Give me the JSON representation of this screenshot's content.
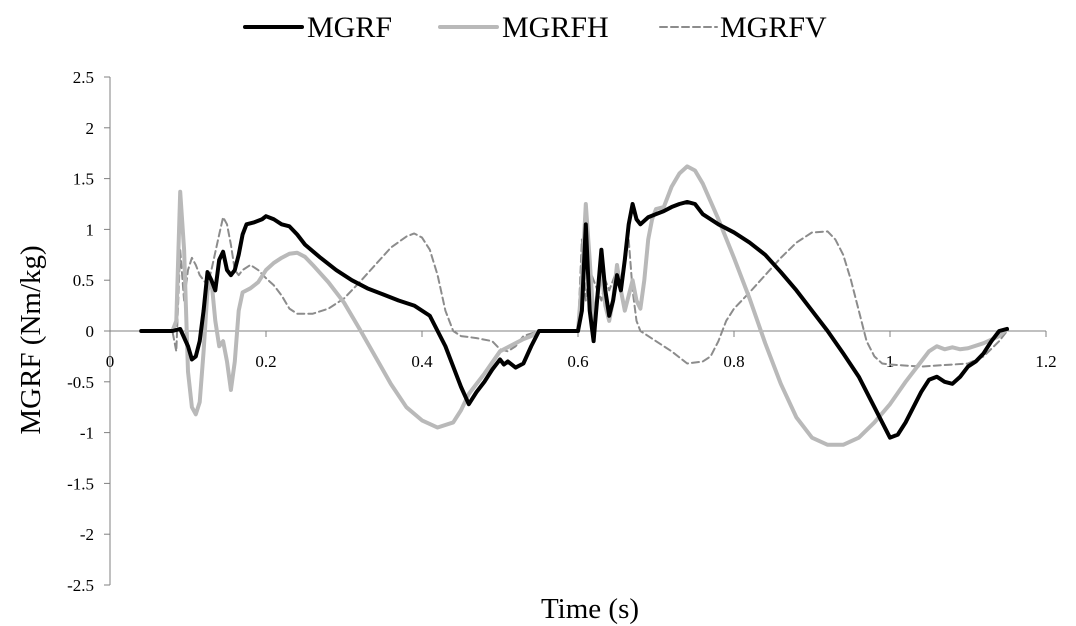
{
  "chart_data": {
    "type": "line",
    "title": "",
    "xlabel": "Time (s)",
    "ylabel": "MGRF (Nm/kg)",
    "xlim": [
      0,
      1.2
    ],
    "ylim": [
      -2.5,
      2.5
    ],
    "xticks": [
      0,
      0.2,
      0.4,
      0.6,
      0.8,
      1,
      1.2
    ],
    "xtick_labels": [
      "0",
      "0.2",
      "0.4",
      "0.6",
      "0.8",
      "1",
      "1.2"
    ],
    "yticks": [
      2.5,
      2,
      1.5,
      1,
      0.5,
      0,
      -0.5,
      -1,
      -1.5,
      -2,
      -2.5
    ],
    "ytick_labels": [
      "2.5",
      "2",
      "1.5",
      "1",
      "0.5",
      "0",
      "-0.5",
      "-1",
      "-1.5",
      "-2",
      "-2.5"
    ],
    "grid": false,
    "legend_position": "top",
    "series": [
      {
        "name": "MGRF",
        "color": "#000000",
        "style": "solid",
        "points": [
          [
            0.04,
            0
          ],
          [
            0.08,
            0
          ],
          [
            0.09,
            0.02
          ],
          [
            0.1,
            -0.15
          ],
          [
            0.105,
            -0.28
          ],
          [
            0.11,
            -0.25
          ],
          [
            0.115,
            -0.1
          ],
          [
            0.12,
            0.2
          ],
          [
            0.125,
            0.58
          ],
          [
            0.13,
            0.5
          ],
          [
            0.135,
            0.4
          ],
          [
            0.14,
            0.7
          ],
          [
            0.145,
            0.78
          ],
          [
            0.15,
            0.6
          ],
          [
            0.155,
            0.55
          ],
          [
            0.16,
            0.6
          ],
          [
            0.165,
            0.75
          ],
          [
            0.17,
            0.95
          ],
          [
            0.175,
            1.05
          ],
          [
            0.185,
            1.07
          ],
          [
            0.195,
            1.1
          ],
          [
            0.2,
            1.13
          ],
          [
            0.21,
            1.1
          ],
          [
            0.22,
            1.05
          ],
          [
            0.23,
            1.03
          ],
          [
            0.24,
            0.95
          ],
          [
            0.25,
            0.85
          ],
          [
            0.27,
            0.72
          ],
          [
            0.29,
            0.6
          ],
          [
            0.31,
            0.5
          ],
          [
            0.33,
            0.42
          ],
          [
            0.35,
            0.36
          ],
          [
            0.37,
            0.3
          ],
          [
            0.39,
            0.25
          ],
          [
            0.41,
            0.15
          ],
          [
            0.42,
            0
          ],
          [
            0.43,
            -0.15
          ],
          [
            0.44,
            -0.35
          ],
          [
            0.45,
            -0.55
          ],
          [
            0.46,
            -0.72
          ],
          [
            0.47,
            -0.6
          ],
          [
            0.48,
            -0.5
          ],
          [
            0.49,
            -0.38
          ],
          [
            0.5,
            -0.28
          ],
          [
            0.505,
            -0.33
          ],
          [
            0.51,
            -0.3
          ],
          [
            0.52,
            -0.36
          ],
          [
            0.53,
            -0.32
          ],
          [
            0.54,
            -0.15
          ],
          [
            0.55,
            0
          ],
          [
            0.6,
            0
          ],
          [
            0.605,
            0.2
          ],
          [
            0.61,
            1.05
          ],
          [
            0.615,
            0.2
          ],
          [
            0.62,
            -0.1
          ],
          [
            0.625,
            0.35
          ],
          [
            0.63,
            0.8
          ],
          [
            0.635,
            0.4
          ],
          [
            0.64,
            0.15
          ],
          [
            0.645,
            0.3
          ],
          [
            0.65,
            0.55
          ],
          [
            0.655,
            0.4
          ],
          [
            0.66,
            0.7
          ],
          [
            0.665,
            1.05
          ],
          [
            0.67,
            1.25
          ],
          [
            0.675,
            1.1
          ],
          [
            0.68,
            1.05
          ],
          [
            0.69,
            1.12
          ],
          [
            0.7,
            1.15
          ],
          [
            0.71,
            1.18
          ],
          [
            0.72,
            1.22
          ],
          [
            0.73,
            1.25
          ],
          [
            0.74,
            1.27
          ],
          [
            0.75,
            1.25
          ],
          [
            0.76,
            1.15
          ],
          [
            0.78,
            1.05
          ],
          [
            0.8,
            0.97
          ],
          [
            0.82,
            0.87
          ],
          [
            0.84,
            0.75
          ],
          [
            0.86,
            0.58
          ],
          [
            0.88,
            0.4
          ],
          [
            0.9,
            0.2
          ],
          [
            0.92,
            0
          ],
          [
            0.94,
            -0.22
          ],
          [
            0.96,
            -0.45
          ],
          [
            0.98,
            -0.75
          ],
          [
            1.0,
            -1.05
          ],
          [
            1.01,
            -1.02
          ],
          [
            1.02,
            -0.9
          ],
          [
            1.03,
            -0.75
          ],
          [
            1.04,
            -0.6
          ],
          [
            1.05,
            -0.48
          ],
          [
            1.06,
            -0.45
          ],
          [
            1.07,
            -0.5
          ],
          [
            1.08,
            -0.52
          ],
          [
            1.09,
            -0.45
          ],
          [
            1.1,
            -0.35
          ],
          [
            1.11,
            -0.3
          ],
          [
            1.12,
            -0.22
          ],
          [
            1.13,
            -0.1
          ],
          [
            1.14,
            0
          ],
          [
            1.15,
            0.02
          ]
        ]
      },
      {
        "name": "MGRFH",
        "color": "#b9b9b9",
        "style": "solid",
        "points": [
          [
            0.04,
            0
          ],
          [
            0.08,
            0
          ],
          [
            0.085,
            0.1
          ],
          [
            0.09,
            1.37
          ],
          [
            0.095,
            0.8
          ],
          [
            0.1,
            -0.4
          ],
          [
            0.105,
            -0.75
          ],
          [
            0.11,
            -0.82
          ],
          [
            0.115,
            -0.7
          ],
          [
            0.12,
            -0.2
          ],
          [
            0.125,
            0.4
          ],
          [
            0.13,
            0.5
          ],
          [
            0.135,
            0.1
          ],
          [
            0.14,
            -0.15
          ],
          [
            0.145,
            -0.1
          ],
          [
            0.15,
            -0.3
          ],
          [
            0.155,
            -0.58
          ],
          [
            0.16,
            -0.3
          ],
          [
            0.165,
            0.2
          ],
          [
            0.17,
            0.38
          ],
          [
            0.18,
            0.42
          ],
          [
            0.19,
            0.48
          ],
          [
            0.2,
            0.6
          ],
          [
            0.21,
            0.67
          ],
          [
            0.22,
            0.72
          ],
          [
            0.23,
            0.76
          ],
          [
            0.24,
            0.77
          ],
          [
            0.25,
            0.73
          ],
          [
            0.26,
            0.65
          ],
          [
            0.28,
            0.48
          ],
          [
            0.3,
            0.28
          ],
          [
            0.32,
            0.02
          ],
          [
            0.34,
            -0.25
          ],
          [
            0.36,
            -0.52
          ],
          [
            0.38,
            -0.75
          ],
          [
            0.4,
            -0.88
          ],
          [
            0.42,
            -0.95
          ],
          [
            0.44,
            -0.9
          ],
          [
            0.45,
            -0.78
          ],
          [
            0.46,
            -0.62
          ],
          [
            0.48,
            -0.42
          ],
          [
            0.5,
            -0.2
          ],
          [
            0.52,
            -0.12
          ],
          [
            0.53,
            -0.08
          ],
          [
            0.54,
            -0.05
          ],
          [
            0.55,
            0
          ],
          [
            0.6,
            0
          ],
          [
            0.605,
            0.5
          ],
          [
            0.61,
            1.25
          ],
          [
            0.615,
            0.7
          ],
          [
            0.62,
            0.1
          ],
          [
            0.625,
            0.35
          ],
          [
            0.63,
            0.6
          ],
          [
            0.635,
            0.25
          ],
          [
            0.64,
            0.1
          ],
          [
            0.645,
            0.3
          ],
          [
            0.65,
            0.65
          ],
          [
            0.655,
            0.4
          ],
          [
            0.66,
            0.2
          ],
          [
            0.665,
            0.35
          ],
          [
            0.67,
            0.5
          ],
          [
            0.675,
            0.3
          ],
          [
            0.68,
            0.22
          ],
          [
            0.685,
            0.5
          ],
          [
            0.69,
            0.9
          ],
          [
            0.695,
            1.1
          ],
          [
            0.7,
            1.2
          ],
          [
            0.71,
            1.22
          ],
          [
            0.72,
            1.42
          ],
          [
            0.73,
            1.55
          ],
          [
            0.74,
            1.62
          ],
          [
            0.75,
            1.58
          ],
          [
            0.76,
            1.45
          ],
          [
            0.78,
            1.1
          ],
          [
            0.8,
            0.72
          ],
          [
            0.82,
            0.32
          ],
          [
            0.84,
            -0.12
          ],
          [
            0.86,
            -0.52
          ],
          [
            0.88,
            -0.85
          ],
          [
            0.9,
            -1.05
          ],
          [
            0.92,
            -1.12
          ],
          [
            0.94,
            -1.12
          ],
          [
            0.96,
            -1.05
          ],
          [
            0.98,
            -0.9
          ],
          [
            1.0,
            -0.72
          ],
          [
            1.02,
            -0.5
          ],
          [
            1.04,
            -0.3
          ],
          [
            1.05,
            -0.2
          ],
          [
            1.06,
            -0.15
          ],
          [
            1.07,
            -0.18
          ],
          [
            1.08,
            -0.16
          ],
          [
            1.09,
            -0.18
          ],
          [
            1.1,
            -0.17
          ],
          [
            1.12,
            -0.12
          ],
          [
            1.14,
            -0.05
          ],
          [
            1.15,
            0.02
          ]
        ]
      },
      {
        "name": "MGRFV",
        "color": "#8c8c8c",
        "style": "dashed",
        "points": [
          [
            0.04,
            0
          ],
          [
            0.08,
            0
          ],
          [
            0.085,
            -0.2
          ],
          [
            0.09,
            0.8
          ],
          [
            0.095,
            0.3
          ],
          [
            0.1,
            0.6
          ],
          [
            0.105,
            0.72
          ],
          [
            0.11,
            0.65
          ],
          [
            0.115,
            0.55
          ],
          [
            0.12,
            0.5
          ],
          [
            0.125,
            0.45
          ],
          [
            0.13,
            0.6
          ],
          [
            0.14,
            0.95
          ],
          [
            0.145,
            1.12
          ],
          [
            0.15,
            1.05
          ],
          [
            0.155,
            0.85
          ],
          [
            0.16,
            0.6
          ],
          [
            0.165,
            0.55
          ],
          [
            0.17,
            0.6
          ],
          [
            0.18,
            0.65
          ],
          [
            0.19,
            0.6
          ],
          [
            0.2,
            0.52
          ],
          [
            0.21,
            0.45
          ],
          [
            0.22,
            0.35
          ],
          [
            0.23,
            0.22
          ],
          [
            0.24,
            0.17
          ],
          [
            0.26,
            0.17
          ],
          [
            0.28,
            0.22
          ],
          [
            0.3,
            0.32
          ],
          [
            0.32,
            0.48
          ],
          [
            0.34,
            0.65
          ],
          [
            0.36,
            0.82
          ],
          [
            0.38,
            0.93
          ],
          [
            0.39,
            0.96
          ],
          [
            0.4,
            0.92
          ],
          [
            0.41,
            0.8
          ],
          [
            0.42,
            0.55
          ],
          [
            0.43,
            0.2
          ],
          [
            0.44,
            0
          ],
          [
            0.45,
            -0.05
          ],
          [
            0.47,
            -0.07
          ],
          [
            0.49,
            -0.1
          ],
          [
            0.5,
            -0.18
          ],
          [
            0.51,
            -0.2
          ],
          [
            0.52,
            -0.15
          ],
          [
            0.53,
            -0.05
          ],
          [
            0.55,
            0
          ],
          [
            0.6,
            0
          ],
          [
            0.605,
            0.9
          ],
          [
            0.61,
            0.3
          ],
          [
            0.615,
            0.6
          ],
          [
            0.62,
            0.5
          ],
          [
            0.63,
            0.3
          ],
          [
            0.635,
            0.5
          ],
          [
            0.64,
            0.4
          ],
          [
            0.65,
            0.6
          ],
          [
            0.655,
            0.5
          ],
          [
            0.66,
            0.65
          ],
          [
            0.665,
            0.9
          ],
          [
            0.67,
            0.4
          ],
          [
            0.675,
            0.1
          ],
          [
            0.68,
            0
          ],
          [
            0.69,
            -0.05
          ],
          [
            0.7,
            -0.1
          ],
          [
            0.72,
            -0.2
          ],
          [
            0.74,
            -0.32
          ],
          [
            0.76,
            -0.3
          ],
          [
            0.77,
            -0.25
          ],
          [
            0.78,
            -0.1
          ],
          [
            0.79,
            0.1
          ],
          [
            0.8,
            0.22
          ],
          [
            0.82,
            0.38
          ],
          [
            0.84,
            0.55
          ],
          [
            0.86,
            0.72
          ],
          [
            0.88,
            0.87
          ],
          [
            0.9,
            0.97
          ],
          [
            0.92,
            0.98
          ],
          [
            0.93,
            0.9
          ],
          [
            0.94,
            0.75
          ],
          [
            0.95,
            0.5
          ],
          [
            0.96,
            0.2
          ],
          [
            0.97,
            -0.1
          ],
          [
            0.98,
            -0.25
          ],
          [
            0.99,
            -0.32
          ],
          [
            1.0,
            -0.33
          ],
          [
            1.04,
            -0.35
          ],
          [
            1.08,
            -0.33
          ],
          [
            1.1,
            -0.32
          ],
          [
            1.12,
            -0.25
          ],
          [
            1.14,
            -0.1
          ],
          [
            1.15,
            0
          ]
        ]
      }
    ]
  }
}
